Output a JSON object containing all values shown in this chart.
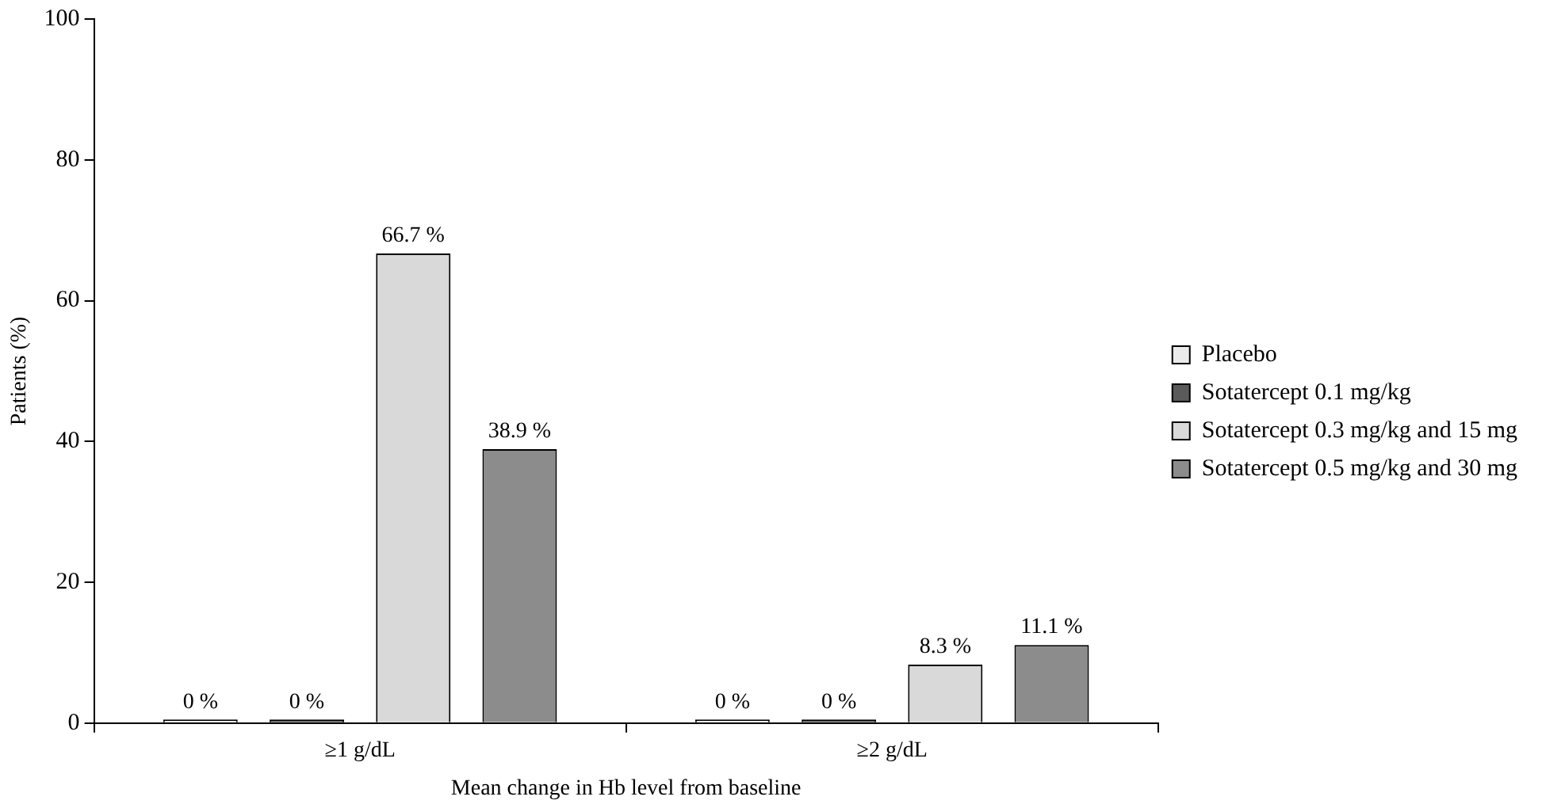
{
  "chart_data": {
    "type": "bar",
    "xlabel": "Mean change in Hb level from baseline",
    "ylabel": "Patients (%)",
    "categories": [
      "≥1 g/dL",
      "≥2 g/dL"
    ],
    "series": [
      {
        "name": "Placebo",
        "color": "#ebebeb",
        "values": [
          0.5,
          0.5
        ],
        "value_labels": [
          "0 %",
          "0 %"
        ]
      },
      {
        "name": "Sotatercept 0.1 mg/kg",
        "color": "#5a5a5a",
        "values": [
          0.5,
          0.5
        ],
        "value_labels": [
          "0 %",
          "0 %"
        ]
      },
      {
        "name": "Sotatercept 0.3 mg/kg and 15 mg",
        "color": "#d9d9d9",
        "values": [
          66.7,
          8.3
        ],
        "value_labels": [
          "66.7 %",
          "8.3 %"
        ]
      },
      {
        "name": "Sotatercept 0.5 mg/kg and 30 mg",
        "color": "#8c8c8c",
        "values": [
          38.9,
          11.1
        ],
        "value_labels": [
          "38.9 %",
          "11.1 %"
        ]
      }
    ],
    "ylim": [
      0,
      100
    ],
    "yticks": [
      0,
      20,
      40,
      60,
      80,
      100
    ],
    "grid": false,
    "legend": "right"
  }
}
